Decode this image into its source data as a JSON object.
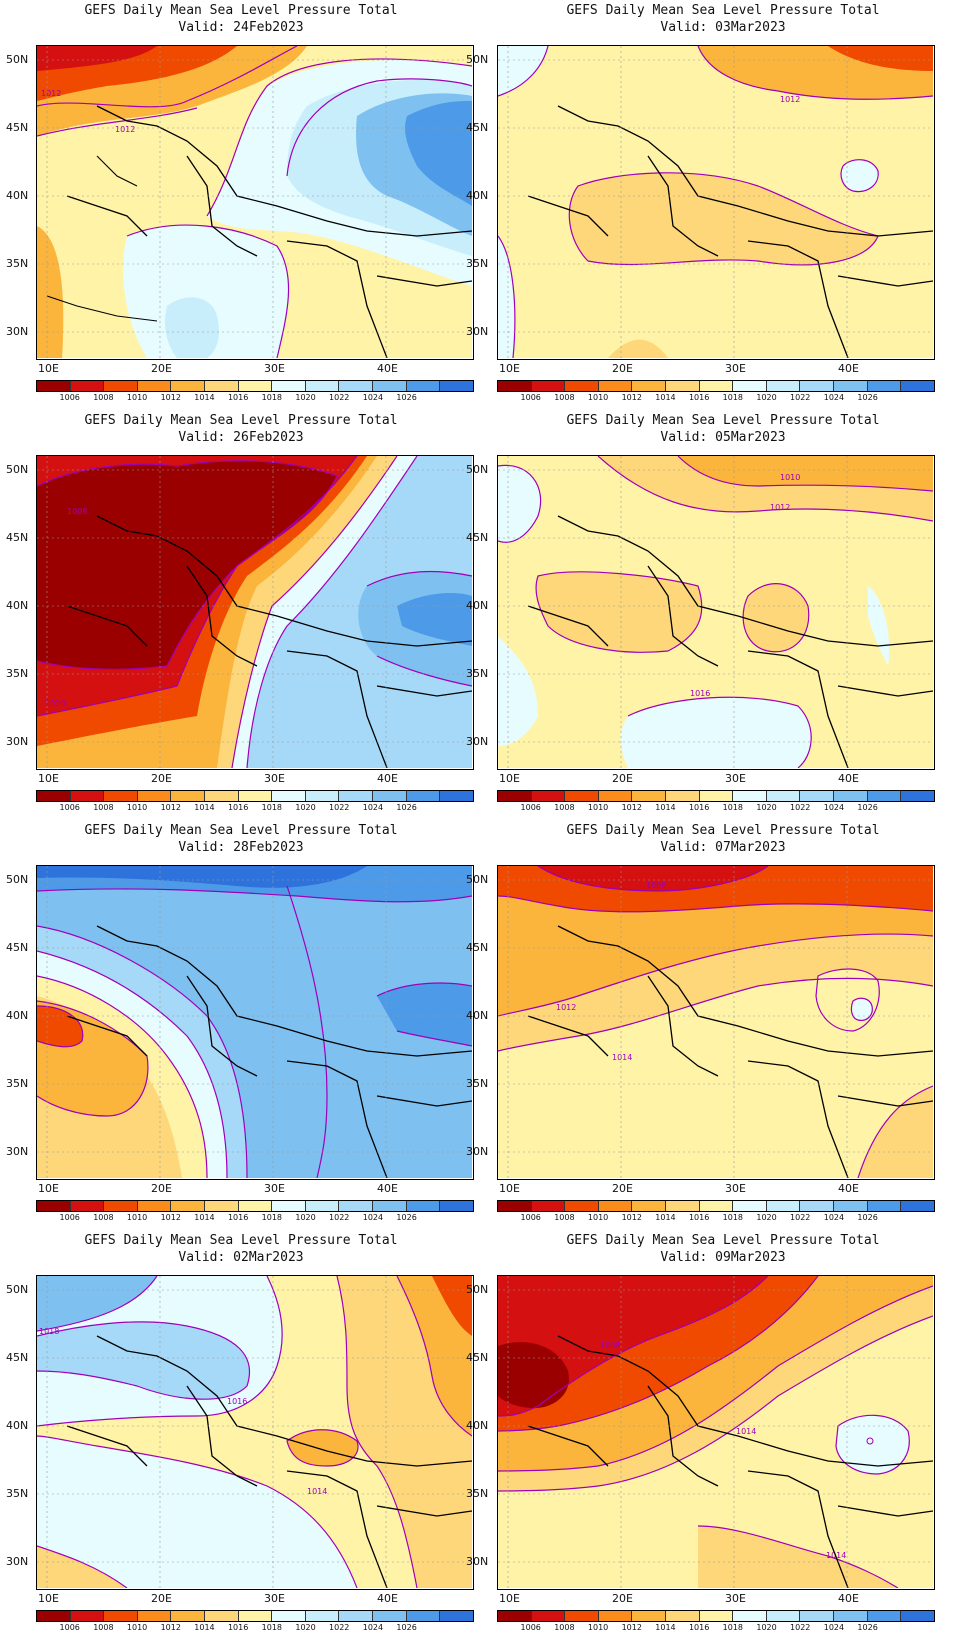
{
  "panels": [
    {
      "title": "GEFS Daily Mean Sea Level Pressure Total",
      "valid": "Valid: 24Feb2023",
      "contour_labels": [
        "1012",
        "1012"
      ]
    },
    {
      "title": "GEFS Daily Mean Sea Level Pressure Total",
      "valid": "Valid: 03Mar2023",
      "contour_labels": [
        "1012"
      ]
    },
    {
      "title": "GEFS Daily Mean Sea Level Pressure Total",
      "valid": "Valid: 26Feb2023",
      "contour_labels": [
        "1008",
        "1010"
      ]
    },
    {
      "title": "GEFS Daily Mean Sea Level Pressure Total",
      "valid": "Valid: 05Mar2023",
      "contour_labels": [
        "1010",
        "1012",
        "1016"
      ]
    },
    {
      "title": "GEFS Daily Mean Sea Level Pressure Total",
      "valid": "Valid: 28Feb2023",
      "contour_labels": []
    },
    {
      "title": "GEFS Daily Mean Sea Level Pressure Total",
      "valid": "Valid: 07Mar2023",
      "contour_labels": [
        "1008",
        "1012",
        "1014"
      ]
    },
    {
      "title": "GEFS Daily Mean Sea Level Pressure Total",
      "valid": "Valid: 02Mar2023",
      "contour_labels": [
        "1018",
        "1016",
        "1014"
      ]
    },
    {
      "title": "GEFS Daily Mean Sea Level Pressure Total",
      "valid": "Valid: 09Mar2023",
      "contour_labels": [
        "1008",
        "1014",
        "1014"
      ]
    }
  ],
  "axes": {
    "lat_labels": [
      "50N",
      "45N",
      "40N",
      "35N",
      "30N"
    ],
    "lon_labels": [
      "10E",
      "20E",
      "30E",
      "40E"
    ]
  },
  "colorbar": {
    "labels": [
      "1006",
      "1008",
      "1010",
      "1012",
      "1014",
      "1016",
      "1018",
      "1020",
      "1022",
      "1024",
      "1026"
    ],
    "colors": [
      "#9b0000",
      "#d41010",
      "#ef4a00",
      "#fb8c1c",
      "#fbb43c",
      "#fdd77a",
      "#fff3a8",
      "#e6fcff",
      "#c8eefc",
      "#a5d9f7",
      "#7ec0f0",
      "#4d9ae8",
      "#2e72dc"
    ]
  },
  "contour_color": "#a000b8"
}
